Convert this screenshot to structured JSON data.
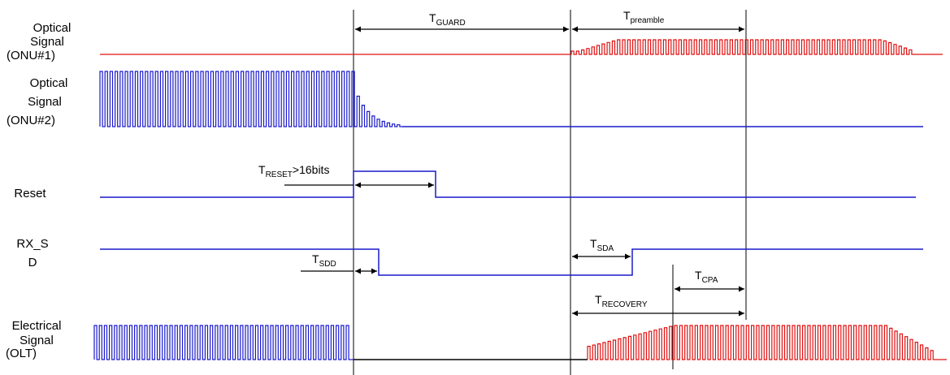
{
  "signals": {
    "onu1": {
      "line1": "Optical",
      "line2": "Signal",
      "line3": "(ONU#1)"
    },
    "onu2": {
      "line1": "Optical",
      "line2": "Signal",
      "line3": "(ONU#2)"
    },
    "reset": {
      "line1": "Reset"
    },
    "rxsd": {
      "line1": "RX_S",
      "line2": "D"
    },
    "elec": {
      "line1": "Electrical",
      "line2": "Signal",
      "line3": "(OLT)"
    }
  },
  "annotations": {
    "t_guard": {
      "base": "T",
      "sub": "GUARD",
      "suffix": ""
    },
    "t_preamble": {
      "base": "T",
      "sub": "preamble",
      "suffix": ""
    },
    "t_reset": {
      "base": "T",
      "sub": "RESET",
      "suffix": ">16bits"
    },
    "t_sdd": {
      "base": "T",
      "sub": "SDD",
      "suffix": ""
    },
    "t_sda": {
      "base": "T",
      "sub": "SDA",
      "suffix": ""
    },
    "t_cpa": {
      "base": "T",
      "sub": "CPA",
      "suffix": ""
    },
    "t_recovery": {
      "base": "T",
      "sub": "RECOVERY",
      "suffix": ""
    }
  },
  "colors": {
    "onu1_wave": "#e01010",
    "onu2_wave": "#1a1acc",
    "control": "#1a1acc",
    "olt_wave_before": "#1a1acc",
    "olt_wave_after": "#e01010",
    "olt_baseline": "#000000",
    "marker": "#000000"
  }
}
